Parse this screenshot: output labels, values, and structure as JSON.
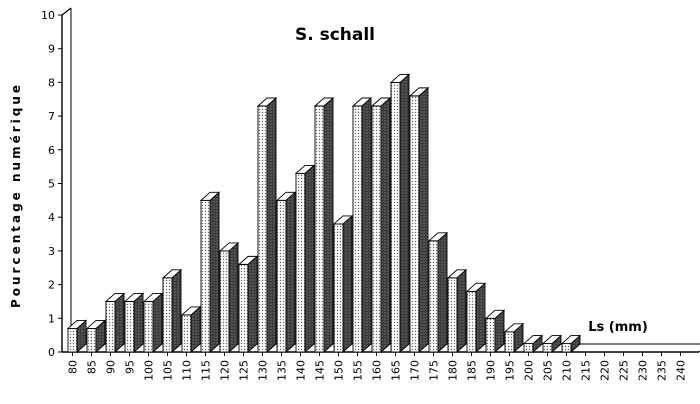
{
  "chart_data": {
    "type": "bar",
    "title": "S. schall",
    "xlabel": "Ls (mm)",
    "ylabel": "Pourcentage numérique",
    "ylim": [
      0,
      10
    ],
    "yticks": [
      "0",
      "1",
      "2",
      "3",
      "4",
      "5",
      "6",
      "7",
      "8",
      "9",
      "10"
    ],
    "categories": [
      "80",
      "85",
      "90",
      "95",
      "100",
      "105",
      "110",
      "115",
      "120",
      "125",
      "130",
      "135",
      "140",
      "145",
      "150",
      "155",
      "160",
      "165",
      "170",
      "175",
      "180",
      "185",
      "190",
      "195",
      "200",
      "205",
      "210",
      "215",
      "220",
      "225",
      "230",
      "235",
      "240"
    ],
    "values": [
      0.7,
      0.7,
      1.5,
      1.5,
      1.5,
      2.2,
      1.1,
      4.5,
      3.0,
      2.6,
      7.3,
      4.5,
      5.3,
      7.3,
      3.8,
      7.3,
      7.3,
      8.0,
      7.6,
      3.3,
      2.2,
      1.8,
      1.0,
      0.6,
      0.25,
      0.25,
      0.25,
      0,
      0,
      0,
      0,
      0,
      0
    ],
    "style": "3d-bar",
    "bar_fill": "#4a4a4a",
    "bar_front": "#e6e6e6",
    "bar_top": "#ffffff",
    "grid": false
  }
}
